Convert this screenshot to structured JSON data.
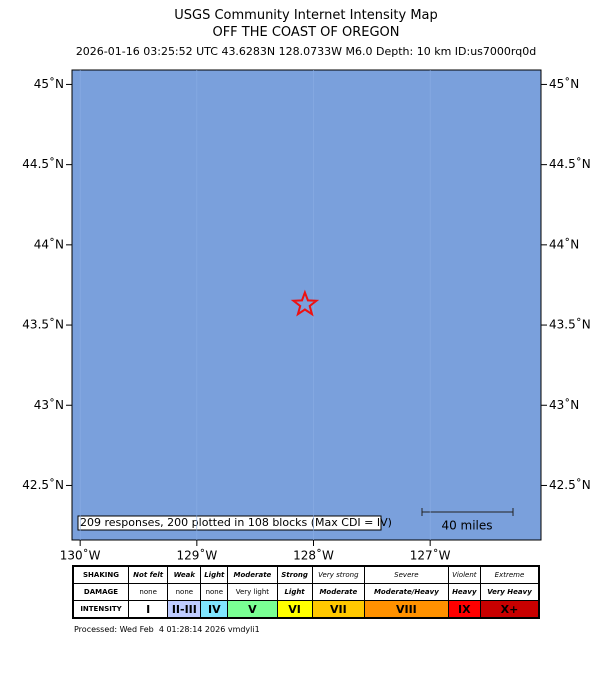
{
  "header": {
    "title": "USGS Community Internet Intensity Map",
    "region": "OFF THE COAST OF OREGON",
    "info": "2026-01-16 03:25:52 UTC 43.6283N 128.0733W M6.0 Depth: 10 km ID:us7000rq0d"
  },
  "map": {
    "xlim": [
      -130.07,
      -126.05
    ],
    "ylim": [
      42.16,
      45.09
    ],
    "yticks": [
      {
        "value": 45,
        "label": "45˚N"
      },
      {
        "value": 44.5,
        "label": "44.5˚N"
      },
      {
        "value": 44,
        "label": "44˚N"
      },
      {
        "value": 43.5,
        "label": "43.5˚N"
      },
      {
        "value": 43,
        "label": "43˚N"
      },
      {
        "value": 42.5,
        "label": "42.5˚N"
      }
    ],
    "xticks": [
      {
        "value": -130,
        "label": "130˚W"
      },
      {
        "value": -129,
        "label": "129˚W"
      },
      {
        "value": -128,
        "label": "128˚W"
      },
      {
        "value": -127,
        "label": "127˚W"
      }
    ],
    "epicenter": {
      "lat": 43.6283,
      "lon": -128.0733,
      "color": "#ee1111"
    },
    "note": "209 responses, 200 plotted in 108 blocks (Max CDI = IV)",
    "scale_label": "40 miles"
  },
  "legend": {
    "rows": [
      {
        "label": "SHAKING",
        "cells": [
          "Not felt",
          "Weak",
          "Light",
          "Moderate",
          "Strong",
          "Very strong",
          "Severe",
          "Violent",
          "Extreme"
        ]
      },
      {
        "label": "DAMAGE",
        "cells": [
          "none",
          "none",
          "none",
          "Very light",
          "Light",
          "Moderate",
          "Moderate/Heavy",
          "Heavy",
          "Very Heavy"
        ]
      },
      {
        "label": "INTENSITY",
        "cells": [
          "I",
          "II-III",
          "IV",
          "V",
          "VI",
          "VII",
          "VIII",
          "IX",
          "X+"
        ]
      }
    ],
    "colors": [
      "#ffffff",
      "#bfccff",
      "#80e6ff",
      "#7aff93",
      "#ffff00",
      "#ffc800",
      "#ff9100",
      "#ff0000",
      "#c80000"
    ]
  },
  "footer": "Processed: Wed Feb  4 01:28:14 2026 vmdyli1"
}
